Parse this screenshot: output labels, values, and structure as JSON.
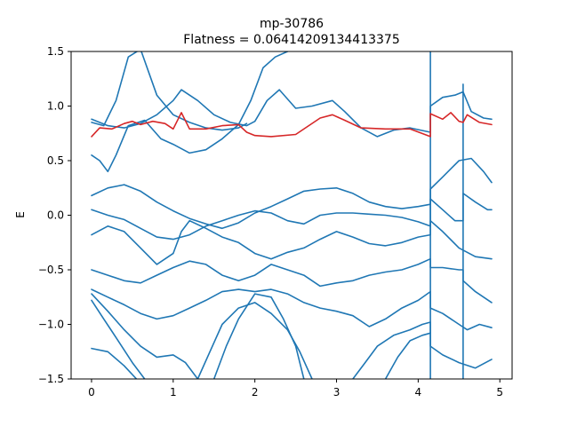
{
  "chart_data": {
    "type": "line",
    "title": "mp-30786",
    "subtitle": "Flatness = 0.06414209134413375",
    "xlabel": "",
    "ylabel": "E",
    "xlim": [
      -0.25,
      5.15
    ],
    "ylim": [
      -1.5,
      1.5
    ],
    "xticks": [
      0,
      1,
      2,
      3,
      4,
      5
    ],
    "yticks": [
      -1.5,
      -1.0,
      -0.5,
      0.0,
      0.5,
      1.0,
      1.5
    ],
    "ytick_labels": [
      "−1.5",
      "−1.0",
      "−0.5",
      "0.0",
      "0.5",
      "1.0",
      "1.5"
    ],
    "grid": false,
    "legend": "none",
    "colors": {
      "bands": "#1f77b4",
      "flat_band": "#d62728"
    },
    "series": [
      {
        "color": "#d62728",
        "points": [
          [
            0,
            0.72
          ],
          [
            0.1,
            0.8
          ],
          [
            0.25,
            0.79
          ],
          [
            0.4,
            0.84
          ],
          [
            0.5,
            0.86
          ],
          [
            0.6,
            0.83
          ],
          [
            0.75,
            0.86
          ],
          [
            0.9,
            0.84
          ],
          [
            1.0,
            0.79
          ],
          [
            1.1,
            0.94
          ],
          [
            1.2,
            0.79
          ],
          [
            1.4,
            0.79
          ],
          [
            1.6,
            0.82
          ],
          [
            1.8,
            0.83
          ],
          [
            1.9,
            0.76
          ],
          [
            2.0,
            0.73
          ],
          [
            2.2,
            0.72
          ],
          [
            2.5,
            0.74
          ],
          [
            2.8,
            0.89
          ],
          [
            2.95,
            0.92
          ],
          [
            3.1,
            0.87
          ],
          [
            3.3,
            0.8
          ],
          [
            3.6,
            0.79
          ],
          [
            3.9,
            0.79
          ],
          [
            4.15,
            0.72
          ],
          [
            4.15,
            0.93
          ],
          [
            4.3,
            0.88
          ],
          [
            4.4,
            0.94
          ],
          [
            4.5,
            0.86
          ],
          [
            4.55,
            0.85
          ],
          [
            4.6,
            0.92
          ],
          [
            4.75,
            0.85
          ],
          [
            4.9,
            0.83
          ]
        ]
      },
      {
        "color": "#1f77b4",
        "points": [
          [
            0,
            0.88
          ],
          [
            0.2,
            0.82
          ],
          [
            0.4,
            0.8
          ],
          [
            0.6,
            0.84
          ],
          [
            0.8,
            0.92
          ],
          [
            1.0,
            1.05
          ],
          [
            1.1,
            1.15
          ],
          [
            1.3,
            1.05
          ],
          [
            1.5,
            0.92
          ],
          [
            1.7,
            0.85
          ],
          [
            1.9,
            0.82
          ],
          [
            2.0,
            0.86
          ],
          [
            2.15,
            1.05
          ],
          [
            2.3,
            1.15
          ],
          [
            2.5,
            0.98
          ],
          [
            2.7,
            1.0
          ],
          [
            2.95,
            1.05
          ],
          [
            3.1,
            0.95
          ],
          [
            3.3,
            0.8
          ],
          [
            3.5,
            0.72
          ],
          [
            3.7,
            0.78
          ],
          [
            3.9,
            0.8
          ],
          [
            4.15,
            0.76
          ],
          [
            4.15,
            1.0
          ],
          [
            4.3,
            1.08
          ],
          [
            4.45,
            1.1
          ],
          [
            4.55,
            1.13
          ],
          [
            4.65,
            0.95
          ],
          [
            4.8,
            0.89
          ],
          [
            4.9,
            0.88
          ]
        ]
      },
      {
        "color": "#1f77b4",
        "points": [
          [
            0,
            0.85
          ],
          [
            0.15,
            0.82
          ],
          [
            0.3,
            1.05
          ],
          [
            0.45,
            1.45
          ],
          [
            0.6,
            1.52
          ],
          [
            0.8,
            1.1
          ],
          [
            1.0,
            0.92
          ],
          [
            1.2,
            0.85
          ],
          [
            1.4,
            0.8
          ],
          [
            1.6,
            0.78
          ],
          [
            1.8,
            0.8
          ],
          [
            1.9,
            0.84
          ]
        ]
      },
      {
        "color": "#1f77b4",
        "points": [
          [
            0,
            0.55
          ],
          [
            0.1,
            0.5
          ],
          [
            0.2,
            0.4
          ],
          [
            0.3,
            0.55
          ],
          [
            0.45,
            0.82
          ],
          [
            0.65,
            0.87
          ],
          [
            0.85,
            0.7
          ],
          [
            1.0,
            0.65
          ],
          [
            1.2,
            0.57
          ],
          [
            1.4,
            0.6
          ],
          [
            1.6,
            0.7
          ],
          [
            1.8,
            0.83
          ],
          [
            1.95,
            1.05
          ],
          [
            2.1,
            1.35
          ],
          [
            2.25,
            1.45
          ],
          [
            2.4,
            1.5
          ]
        ]
      },
      {
        "color": "#1f77b4",
        "points": [
          [
            0,
            0.18
          ],
          [
            0.2,
            0.25
          ],
          [
            0.4,
            0.28
          ],
          [
            0.6,
            0.22
          ],
          [
            0.8,
            0.12
          ],
          [
            1.0,
            0.04
          ],
          [
            1.2,
            -0.03
          ],
          [
            1.4,
            -0.08
          ],
          [
            1.6,
            -0.12
          ],
          [
            1.8,
            -0.07
          ],
          [
            2.0,
            0.02
          ],
          [
            2.2,
            0.08
          ],
          [
            2.4,
            0.15
          ],
          [
            2.6,
            0.22
          ],
          [
            2.8,
            0.24
          ],
          [
            3.0,
            0.25
          ],
          [
            3.2,
            0.2
          ],
          [
            3.4,
            0.12
          ],
          [
            3.6,
            0.08
          ],
          [
            3.8,
            0.06
          ],
          [
            4.0,
            0.08
          ],
          [
            4.15,
            0.1
          ],
          [
            4.15,
            0.24
          ],
          [
            4.3,
            0.35
          ],
          [
            4.5,
            0.5
          ],
          [
            4.65,
            0.52
          ],
          [
            4.8,
            0.4
          ],
          [
            4.9,
            0.3
          ]
        ]
      },
      {
        "color": "#1f77b4",
        "points": [
          [
            0,
            0.05
          ],
          [
            0.2,
            0.0
          ],
          [
            0.4,
            -0.04
          ],
          [
            0.6,
            -0.12
          ],
          [
            0.8,
            -0.2
          ],
          [
            1.0,
            -0.22
          ],
          [
            1.2,
            -0.18
          ],
          [
            1.4,
            -0.1
          ],
          [
            1.6,
            -0.05
          ],
          [
            1.8,
            0.0
          ],
          [
            2.0,
            0.04
          ],
          [
            2.2,
            0.02
          ],
          [
            2.4,
            -0.05
          ],
          [
            2.6,
            -0.08
          ],
          [
            2.8,
            0.0
          ],
          [
            3.0,
            0.02
          ],
          [
            3.2,
            0.02
          ],
          [
            3.4,
            0.01
          ],
          [
            3.6,
            0.0
          ],
          [
            3.8,
            -0.02
          ],
          [
            4.0,
            -0.06
          ],
          [
            4.15,
            -0.1
          ],
          [
            4.15,
            0.15
          ],
          [
            4.3,
            0.05
          ],
          [
            4.45,
            -0.05
          ],
          [
            4.55,
            -0.05
          ],
          [
            4.55,
            0.2
          ],
          [
            4.7,
            0.12
          ],
          [
            4.85,
            0.05
          ],
          [
            4.9,
            0.05
          ]
        ]
      },
      {
        "color": "#1f77b4",
        "points": [
          [
            0,
            -0.18
          ],
          [
            0.2,
            -0.1
          ],
          [
            0.4,
            -0.15
          ],
          [
            0.6,
            -0.3
          ],
          [
            0.8,
            -0.45
          ],
          [
            1.0,
            -0.35
          ],
          [
            1.1,
            -0.15
          ],
          [
            1.2,
            -0.05
          ],
          [
            1.4,
            -0.12
          ],
          [
            1.6,
            -0.2
          ],
          [
            1.8,
            -0.25
          ],
          [
            2.0,
            -0.35
          ],
          [
            2.2,
            -0.4
          ],
          [
            2.4,
            -0.34
          ],
          [
            2.6,
            -0.3
          ],
          [
            2.8,
            -0.22
          ],
          [
            3.0,
            -0.15
          ],
          [
            3.2,
            -0.2
          ],
          [
            3.4,
            -0.26
          ],
          [
            3.6,
            -0.28
          ],
          [
            3.8,
            -0.25
          ],
          [
            4.0,
            -0.2
          ],
          [
            4.15,
            -0.18
          ],
          [
            4.15,
            -0.05
          ],
          [
            4.3,
            -0.15
          ],
          [
            4.5,
            -0.3
          ],
          [
            4.7,
            -0.38
          ],
          [
            4.9,
            -0.4
          ]
        ]
      },
      {
        "color": "#1f77b4",
        "points": [
          [
            0,
            -0.5
          ],
          [
            0.2,
            -0.55
          ],
          [
            0.4,
            -0.6
          ],
          [
            0.6,
            -0.62
          ],
          [
            0.8,
            -0.55
          ],
          [
            1.0,
            -0.48
          ],
          [
            1.2,
            -0.42
          ],
          [
            1.4,
            -0.45
          ],
          [
            1.6,
            -0.55
          ],
          [
            1.8,
            -0.6
          ],
          [
            2.0,
            -0.55
          ],
          [
            2.2,
            -0.45
          ],
          [
            2.4,
            -0.5
          ],
          [
            2.6,
            -0.55
          ],
          [
            2.8,
            -0.65
          ],
          [
            3.0,
            -0.62
          ],
          [
            3.2,
            -0.6
          ],
          [
            3.4,
            -0.55
          ],
          [
            3.6,
            -0.52
          ],
          [
            3.8,
            -0.5
          ],
          [
            4.0,
            -0.45
          ],
          [
            4.15,
            -0.4
          ],
          [
            4.15,
            -0.48
          ],
          [
            4.3,
            -0.48
          ],
          [
            4.5,
            -0.5
          ],
          [
            4.55,
            -0.5
          ],
          [
            4.55,
            -0.6
          ],
          [
            4.7,
            -0.7
          ],
          [
            4.9,
            -0.8
          ]
        ]
      },
      {
        "color": "#1f77b4",
        "points": [
          [
            0,
            -0.68
          ],
          [
            0.2,
            -0.75
          ],
          [
            0.4,
            -0.82
          ],
          [
            0.6,
            -0.9
          ],
          [
            0.8,
            -0.95
          ],
          [
            1.0,
            -0.92
          ],
          [
            1.2,
            -0.85
          ],
          [
            1.4,
            -0.78
          ],
          [
            1.6,
            -0.7
          ],
          [
            1.8,
            -0.68
          ],
          [
            2.0,
            -0.7
          ],
          [
            2.2,
            -0.68
          ],
          [
            2.4,
            -0.72
          ],
          [
            2.6,
            -0.8
          ],
          [
            2.8,
            -0.85
          ],
          [
            3.0,
            -0.88
          ],
          [
            3.2,
            -0.92
          ],
          [
            3.4,
            -1.02
          ],
          [
            3.6,
            -0.95
          ],
          [
            3.8,
            -0.85
          ],
          [
            4.0,
            -0.78
          ],
          [
            4.15,
            -0.7
          ],
          [
            4.15,
            -0.85
          ],
          [
            4.3,
            -0.9
          ],
          [
            4.5,
            -1.0
          ],
          [
            4.6,
            -1.05
          ],
          [
            4.75,
            -1.0
          ],
          [
            4.9,
            -1.03
          ]
        ]
      },
      {
        "color": "#1f77b4",
        "points": [
          [
            0,
            -0.78
          ],
          [
            0.15,
            -0.95
          ],
          [
            0.3,
            -1.12
          ],
          [
            0.5,
            -1.35
          ],
          [
            0.65,
            -1.5
          ]
        ]
      },
      {
        "color": "#1f77b4",
        "points": [
          [
            0,
            -0.72
          ],
          [
            0.2,
            -0.88
          ],
          [
            0.4,
            -1.05
          ],
          [
            0.6,
            -1.2
          ],
          [
            0.8,
            -1.3
          ],
          [
            1.0,
            -1.28
          ],
          [
            1.15,
            -1.35
          ],
          [
            1.3,
            -1.5
          ]
        ]
      },
      {
        "color": "#1f77b4",
        "points": [
          [
            0,
            -1.22
          ],
          [
            0.2,
            -1.25
          ],
          [
            0.4,
            -1.38
          ],
          [
            0.55,
            -1.5
          ]
        ]
      },
      {
        "color": "#1f77b4",
        "points": [
          [
            1.3,
            -1.5
          ],
          [
            1.45,
            -1.25
          ],
          [
            1.6,
            -1.0
          ],
          [
            1.8,
            -0.85
          ],
          [
            2.0,
            -0.8
          ],
          [
            2.2,
            -0.9
          ],
          [
            2.4,
            -1.05
          ],
          [
            2.55,
            -1.25
          ],
          [
            2.7,
            -1.5
          ]
        ]
      },
      {
        "color": "#1f77b4",
        "points": [
          [
            1.5,
            -1.5
          ],
          [
            1.65,
            -1.2
          ],
          [
            1.8,
            -0.95
          ],
          [
            2.0,
            -0.72
          ],
          [
            2.2,
            -0.75
          ],
          [
            2.35,
            -0.95
          ],
          [
            2.5,
            -1.2
          ],
          [
            2.6,
            -1.5
          ]
        ]
      },
      {
        "color": "#1f77b4",
        "points": [
          [
            3.2,
            -1.5
          ],
          [
            3.35,
            -1.35
          ],
          [
            3.5,
            -1.2
          ],
          [
            3.7,
            -1.1
          ],
          [
            3.9,
            -1.05
          ],
          [
            4.05,
            -1.0
          ],
          [
            4.15,
            -0.98
          ],
          [
            4.15,
            -1.2
          ],
          [
            4.3,
            -1.28
          ],
          [
            4.5,
            -1.35
          ],
          [
            4.7,
            -1.4
          ],
          [
            4.9,
            -1.32
          ]
        ]
      },
      {
        "color": "#1f77b4",
        "points": [
          [
            3.6,
            -1.5
          ],
          [
            3.75,
            -1.3
          ],
          [
            3.9,
            -1.15
          ],
          [
            4.05,
            -1.1
          ],
          [
            4.15,
            -1.08
          ]
        ]
      },
      {
        "color": "#1f77b4",
        "points": [
          [
            4.15,
            -1.5
          ],
          [
            4.15,
            1.5
          ]
        ]
      },
      {
        "color": "#1f77b4",
        "points": [
          [
            4.55,
            -1.5
          ],
          [
            4.55,
            1.2
          ]
        ]
      }
    ]
  }
}
